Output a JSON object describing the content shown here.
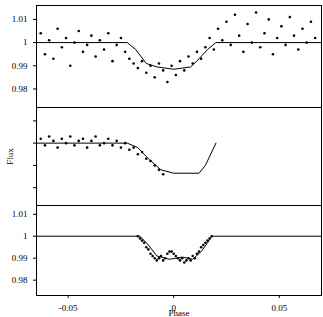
{
  "chart_data": [
    {
      "type": "scatter",
      "xlim": [
        -0.065,
        0.07
      ],
      "ylim": [
        0.972,
        1.016
      ],
      "xticks": [
        -0.05,
        0,
        0.05
      ],
      "yticks": [
        0.98,
        0.99,
        1,
        1.01
      ],
      "tick_labels": "y",
      "series": [
        {
          "type": "scatter",
          "color": "#000000",
          "marker": "circle",
          "x": [
            -0.063,
            -0.061,
            -0.059,
            -0.057,
            -0.055,
            -0.053,
            -0.051,
            -0.049,
            -0.047,
            -0.045,
            -0.043,
            -0.041,
            -0.039,
            -0.037,
            -0.035,
            -0.033,
            -0.031,
            -0.029,
            -0.027,
            -0.025,
            -0.023,
            -0.021,
            -0.019,
            -0.017,
            -0.015,
            -0.013,
            -0.011,
            -0.009,
            -0.007,
            -0.005,
            -0.003,
            -0.001,
            0.001,
            0.003,
            0.005,
            0.007,
            0.009,
            0.011,
            0.013,
            0.015,
            0.017,
            0.019,
            0.021,
            0.023,
            0.025,
            0.027,
            0.029,
            0.031,
            0.033,
            0.035,
            0.037,
            0.039,
            0.041,
            0.043,
            0.045,
            0.047,
            0.049,
            0.051,
            0.053,
            0.055,
            0.057,
            0.059,
            0.061,
            0.063,
            0.065,
            0.067
          ],
          "values": [
            1.004,
            0.995,
            1.001,
            0.993,
            1.006,
            0.998,
            1.002,
            0.99,
            1.0,
            1.005,
            0.996,
            0.999,
            1.003,
            0.994,
            1.001,
            0.997,
            1.004,
            0.992,
            0.999,
            1.002,
            0.996,
            0.993,
            0.991,
            0.989,
            0.992,
            0.987,
            0.99,
            0.985,
            0.991,
            0.988,
            0.983,
            0.99,
            0.986,
            0.992,
            0.988,
            0.994,
            0.991,
            0.996,
            0.993,
            0.998,
            1.002,
            0.997,
            1.006,
            1.001,
            1.009,
            0.999,
            1.012,
            1.003,
            0.996,
            1.008,
            1.0,
            1.013,
            0.998,
            1.004,
            1.01,
            0.995,
            1.002,
            1.007,
            0.999,
            1.011,
            1.003,
            0.997,
            1.006,
            1.0,
            1.009,
            1.002
          ]
        },
        {
          "type": "line",
          "color": "#000000",
          "line_style": "solid",
          "x": [
            -0.065,
            -0.022,
            -0.018,
            -0.013,
            -0.008,
            0,
            0.008,
            0.012,
            0.016,
            0.02,
            0.07
          ],
          "values": [
            1,
            1,
            0.997,
            0.991,
            0.9895,
            0.9885,
            0.9895,
            0.993,
            0.997,
            1,
            1
          ]
        }
      ]
    },
    {
      "type": "scatter",
      "y_label": "Flux",
      "xlim": [
        -0.065,
        0.07
      ],
      "ylim": [
        0.972,
        1.016
      ],
      "xticks": [
        -0.05,
        0,
        0.05
      ],
      "yticks": [
        0.98,
        0.99,
        1,
        1.01
      ],
      "tick_labels": false,
      "series": [
        {
          "type": "scatter",
          "color": "#000000",
          "marker": "circle",
          "x": [
            -0.063,
            -0.061,
            -0.059,
            -0.057,
            -0.055,
            -0.053,
            -0.051,
            -0.049,
            -0.047,
            -0.045,
            -0.043,
            -0.041,
            -0.039,
            -0.037,
            -0.035,
            -0.033,
            -0.031,
            -0.029,
            -0.027,
            -0.025,
            -0.023,
            -0.021,
            -0.019,
            -0.017,
            -0.015,
            -0.013,
            -0.011,
            -0.009,
            -0.007,
            -0.005
          ],
          "values": [
            1.002,
            0.999,
            1.003,
            1.001,
            0.998,
            1.002,
            1.0,
            1.003,
            0.999,
            1.001,
            1.002,
            0.998,
            1.001,
            1.003,
            0.999,
            1.0,
            1.002,
            0.999,
            1.001,
            0.998,
            1.0,
            0.997,
            0.998,
            0.995,
            0.996,
            0.993,
            0.992,
            0.99,
            0.988,
            0.986
          ]
        },
        {
          "type": "line",
          "color": "#000000",
          "line_style": "solid",
          "x": [
            -0.065,
            -0.022,
            -0.017,
            -0.012,
            -0.006,
            0,
            0.012,
            0.015,
            0.018,
            0.02
          ],
          "values": [
            1,
            1,
            0.998,
            0.993,
            0.988,
            0.9865,
            0.9865,
            0.99,
            0.996,
            1
          ]
        }
      ]
    },
    {
      "type": "scatter",
      "x_label": "Phase",
      "xlim": [
        -0.065,
        0.07
      ],
      "ylim": [
        0.973,
        1.014
      ],
      "xticks": [
        -0.05,
        0,
        0.05
      ],
      "yticks": [
        0.98,
        0.99,
        1,
        1.01
      ],
      "series": [
        {
          "type": "scatter",
          "color": "#000000",
          "marker": "circle",
          "x": [
            -0.017,
            -0.016,
            -0.015,
            -0.014,
            -0.013,
            -0.012,
            -0.011,
            -0.01,
            -0.009,
            -0.008,
            -0.007,
            -0.006,
            -0.005,
            -0.004,
            -0.003,
            -0.002,
            -0.001,
            0,
            0.001,
            0.002,
            0.003,
            0.004,
            0.005,
            0.006,
            0.007,
            0.008,
            0.009,
            0.01,
            0.011,
            0.012,
            0.013,
            0.014,
            0.015,
            0.016,
            0.017,
            0.018
          ],
          "values": [
            1.0,
            0.999,
            0.998,
            0.997,
            0.995,
            0.994,
            0.992,
            0.991,
            0.99,
            0.989,
            0.99,
            0.991,
            0.989,
            0.99,
            0.992,
            0.993,
            0.993,
            0.992,
            0.991,
            0.99,
            0.989,
            0.99,
            0.988,
            0.989,
            0.99,
            0.989,
            0.991,
            0.99,
            0.992,
            0.993,
            0.995,
            0.996,
            0.997,
            0.998,
            0.999,
            1.0
          ]
        },
        {
          "type": "line",
          "color": "#000000",
          "line_style": "solid",
          "x": [
            -0.065,
            -0.016,
            -0.012,
            -0.008,
            -0.002,
            0.004,
            0.009,
            0.013,
            0.016,
            0.018,
            0.07
          ],
          "values": [
            1,
            1,
            0.996,
            0.991,
            0.9895,
            0.9905,
            0.9895,
            0.993,
            0.997,
            1,
            1
          ]
        }
      ]
    }
  ]
}
